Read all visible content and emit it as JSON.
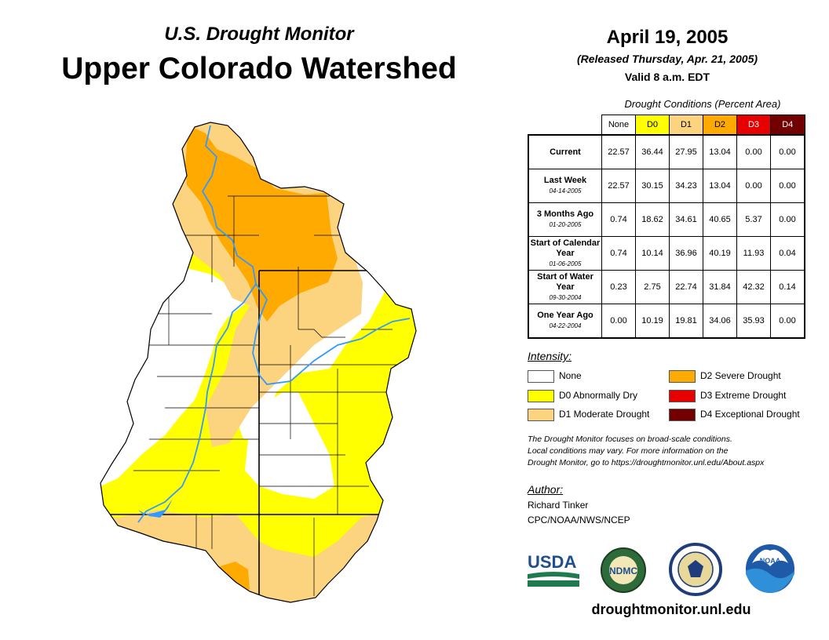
{
  "header": {
    "subtitle": "U.S. Drought Monitor",
    "title": "Upper Colorado Watershed"
  },
  "date": {
    "main": "April 19, 2005",
    "released": "(Released Thursday, Apr. 21, 2005)",
    "valid": "Valid 8 a.m. EDT"
  },
  "table": {
    "caption": "Drought Conditions (Percent Area)",
    "columns": [
      {
        "label": "None",
        "color": "#ffffff",
        "text": "#000000"
      },
      {
        "label": "D0",
        "color": "#ffff00",
        "text": "#000000"
      },
      {
        "label": "D1",
        "color": "#fcd37f",
        "text": "#000000"
      },
      {
        "label": "D2",
        "color": "#ffaa00",
        "text": "#000000"
      },
      {
        "label": "D3",
        "color": "#e60000",
        "text": "#ffffff"
      },
      {
        "label": "D4",
        "color": "#730000",
        "text": "#ffffff"
      }
    ],
    "rows": [
      {
        "label": "Current",
        "date": "",
        "values": [
          "22.57",
          "36.44",
          "27.95",
          "13.04",
          "0.00",
          "0.00"
        ]
      },
      {
        "label": "Last Week",
        "date": "04-14-2005",
        "values": [
          "22.57",
          "30.15",
          "34.23",
          "13.04",
          "0.00",
          "0.00"
        ]
      },
      {
        "label": "3 Months Ago",
        "date": "01-20-2005",
        "values": [
          "0.74",
          "18.62",
          "34.61",
          "40.65",
          "5.37",
          "0.00"
        ]
      },
      {
        "label": "Start of Calendar Year",
        "date": "01-06-2005",
        "values": [
          "0.74",
          "10.14",
          "36.96",
          "40.19",
          "11.93",
          "0.04"
        ]
      },
      {
        "label": "Start of Water Year",
        "date": "09-30-2004",
        "values": [
          "0.23",
          "2.75",
          "22.74",
          "31.84",
          "42.32",
          "0.14"
        ]
      },
      {
        "label": "One Year Ago",
        "date": "04-22-2004",
        "values": [
          "0.00",
          "10.19",
          "19.81",
          "34.06",
          "35.93",
          "0.00"
        ]
      }
    ]
  },
  "legend": {
    "title": "Intensity:",
    "items": [
      {
        "label": "None",
        "color": "#ffffff"
      },
      {
        "label": "D0 Abnormally Dry",
        "color": "#ffff00"
      },
      {
        "label": "D1 Moderate Drought",
        "color": "#fcd37f"
      },
      {
        "label": "D2 Severe Drought",
        "color": "#ffaa00"
      },
      {
        "label": "D3 Extreme Drought",
        "color": "#e60000"
      },
      {
        "label": "D4 Exceptional Drought",
        "color": "#730000"
      }
    ]
  },
  "note": {
    "line1": "The Drought Monitor focuses on broad-scale conditions.",
    "line2": "Local conditions may vary. For more information on the",
    "line3": "Drought Monitor, go to https://droughtmonitor.unl.edu/About.aspx"
  },
  "author": {
    "heading": "Author:",
    "name": "Richard Tinker",
    "org": "CPC/NOAA/NWS/NCEP"
  },
  "logos": {
    "usda": "USDA",
    "ndmc": "NDMC",
    "noaa": "NOAA"
  },
  "url": "droughtmonitor.unl.edu",
  "colors": {
    "none": "#ffffff",
    "d0": "#ffff00",
    "d1": "#fcd37f",
    "d2": "#ffaa00",
    "river": "#3399ff",
    "border": "#000000"
  }
}
